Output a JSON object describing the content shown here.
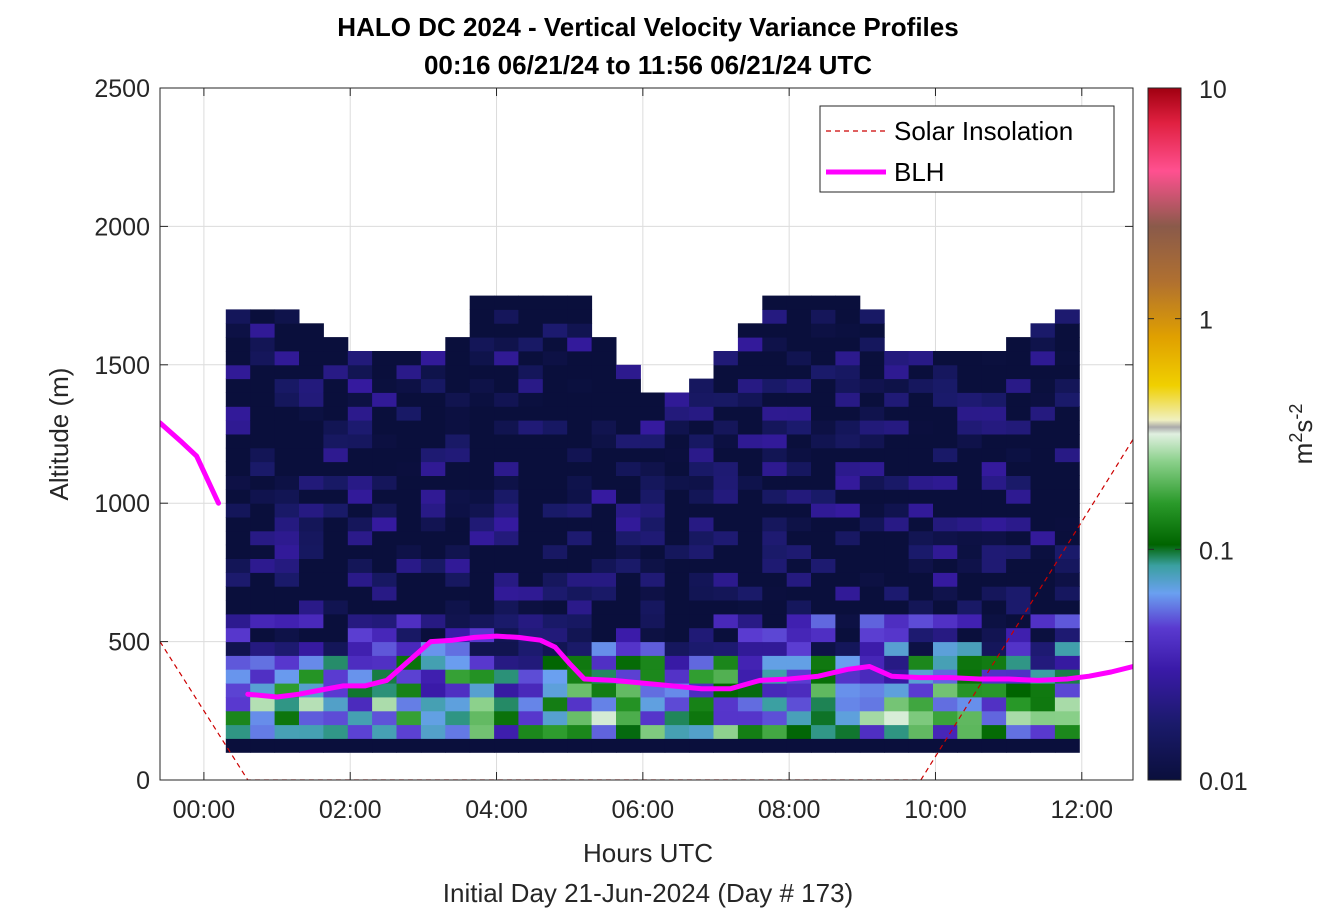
{
  "chart_data": {
    "type": "heatmap",
    "title": "HALO DC 2024 - Vertical Velocity Variance Profiles",
    "subtitle": "00:16 06/21/24 to 11:56 06/21/24  UTC",
    "xlabel": "Hours UTC",
    "xlabel2": "Initial Day 21-Jun-2024 (Day # 173)",
    "ylabel": "Altitude (m)",
    "xlim_hours": [
      -0.6,
      12.7
    ],
    "ylim": [
      0,
      2500
    ],
    "x_ticks": [
      {
        "value": 0,
        "label": "00:00"
      },
      {
        "value": 2,
        "label": "02:00"
      },
      {
        "value": 4,
        "label": "04:00"
      },
      {
        "value": 6,
        "label": "06:00"
      },
      {
        "value": 8,
        "label": "08:00"
      },
      {
        "value": 10,
        "label": "10:00"
      },
      {
        "value": 12,
        "label": "12:00"
      }
    ],
    "y_ticks": [
      {
        "value": 0,
        "label": "0"
      },
      {
        "value": 500,
        "label": "500"
      },
      {
        "value": 1000,
        "label": "1000"
      },
      {
        "value": 1500,
        "label": "1500"
      },
      {
        "value": 2000,
        "label": "2000"
      },
      {
        "value": 2500,
        "label": "2500"
      }
    ],
    "grid": true,
    "legend_position": "top-right",
    "legend": [
      {
        "label": "Solar Insolation",
        "color": "#cc0000",
        "style": "dashed"
      },
      {
        "label": "BLH",
        "color": "#ff00ff",
        "style": "solid"
      }
    ],
    "colorbar": {
      "label_base": "m",
      "label_exp1": "2",
      "label_mid": "s",
      "label_exp2": "-2",
      "scale": "log",
      "range": [
        0.01,
        10
      ],
      "ticks": [
        {
          "value": 0.01,
          "label": "0.01"
        },
        {
          "value": 0.1,
          "label": "0.1"
        },
        {
          "value": 1,
          "label": "1"
        },
        {
          "value": 10,
          "label": "10"
        }
      ]
    },
    "heatmap_grid": {
      "time_start_hours": 0.3,
      "time_step_hours": 0.3333,
      "columns": 35,
      "alt_start_m": 100,
      "alt_step_m": 50,
      "rows": 33
    },
    "heatmap_bands": [
      {
        "alt": [
          100,
          150
        ],
        "level": 0.01
      },
      {
        "alt": [
          150,
          200
        ],
        "level": 0.09
      },
      {
        "alt": [
          200,
          250
        ],
        "level": 0.12
      },
      {
        "alt": [
          250,
          300
        ],
        "level": 0.1
      },
      {
        "alt": [
          300,
          350
        ],
        "level": 0.08
      },
      {
        "alt": [
          350,
          400
        ],
        "level": 0.07
      },
      {
        "alt": [
          400,
          450
        ],
        "level": 0.05
      },
      {
        "alt": [
          450,
          500
        ],
        "level": 0.03
      },
      {
        "alt": [
          500,
          600
        ],
        "level": 0.02
      },
      {
        "alt": [
          600,
          1800
        ],
        "level": 0.01
      }
    ],
    "blh": [
      {
        "x": -0.6,
        "y": 1290
      },
      {
        "x": -0.3,
        "y": 1220
      },
      {
        "x": -0.1,
        "y": 1170
      },
      {
        "x": 0.2,
        "y": 1000
      },
      {
        "x": 0.6,
        "y": 310
      },
      {
        "x": 1.0,
        "y": 300
      },
      {
        "x": 1.3,
        "y": 310
      },
      {
        "x": 1.6,
        "y": 325
      },
      {
        "x": 1.9,
        "y": 340
      },
      {
        "x": 2.2,
        "y": 340
      },
      {
        "x": 2.5,
        "y": 360
      },
      {
        "x": 2.8,
        "y": 430
      },
      {
        "x": 3.1,
        "y": 500
      },
      {
        "x": 3.4,
        "y": 505
      },
      {
        "x": 3.7,
        "y": 515
      },
      {
        "x": 4.0,
        "y": 520
      },
      {
        "x": 4.3,
        "y": 515
      },
      {
        "x": 4.6,
        "y": 505
      },
      {
        "x": 4.8,
        "y": 480
      },
      {
        "x": 5.0,
        "y": 420
      },
      {
        "x": 5.2,
        "y": 365
      },
      {
        "x": 5.6,
        "y": 360
      },
      {
        "x": 6.0,
        "y": 350
      },
      {
        "x": 6.4,
        "y": 340
      },
      {
        "x": 6.8,
        "y": 330
      },
      {
        "x": 7.2,
        "y": 330
      },
      {
        "x": 7.6,
        "y": 360
      },
      {
        "x": 8.0,
        "y": 365
      },
      {
        "x": 8.4,
        "y": 375
      },
      {
        "x": 8.8,
        "y": 400
      },
      {
        "x": 9.1,
        "y": 410
      },
      {
        "x": 9.4,
        "y": 375
      },
      {
        "x": 9.8,
        "y": 370
      },
      {
        "x": 10.2,
        "y": 370
      },
      {
        "x": 10.6,
        "y": 365
      },
      {
        "x": 11.0,
        "y": 365
      },
      {
        "x": 11.4,
        "y": 360
      },
      {
        "x": 11.8,
        "y": 365
      },
      {
        "x": 12.1,
        "y": 375
      },
      {
        "x": 12.4,
        "y": 390
      },
      {
        "x": 12.7,
        "y": 410
      }
    ],
    "solar_insolation": [
      {
        "x": -0.6,
        "y": 500
      },
      {
        "x": 0.6,
        "y": 0
      },
      {
        "x": 9.8,
        "y": 0
      },
      {
        "x": 12.7,
        "y": 1230
      }
    ]
  }
}
